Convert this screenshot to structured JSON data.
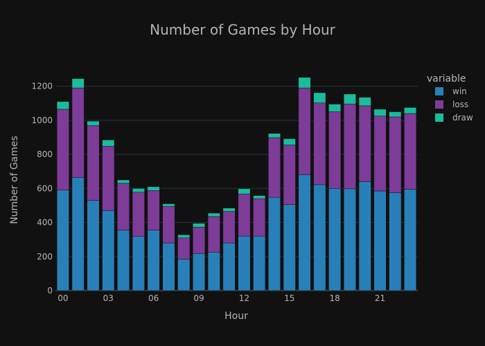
{
  "chart_data": {
    "type": "bar",
    "barmode": "stack",
    "title": "Number of Games by Hour",
    "xlabel": "Hour",
    "ylabel": "Number of Games",
    "legend_title": "variable",
    "legend_position": "top-right",
    "grid": true,
    "ylim": [
      0,
      1300
    ],
    "yticks": [
      0,
      200,
      400,
      600,
      800,
      1000,
      1200
    ],
    "xtick_labels": [
      {
        "hour": 0,
        "label": "00"
      },
      {
        "hour": 3,
        "label": "03"
      },
      {
        "hour": 6,
        "label": "06"
      },
      {
        "hour": 9,
        "label": "09"
      },
      {
        "hour": 12,
        "label": "12"
      },
      {
        "hour": 15,
        "label": "15"
      },
      {
        "hour": 18,
        "label": "18"
      },
      {
        "hour": 21,
        "label": "21"
      }
    ],
    "x": [
      0,
      1,
      2,
      3,
      4,
      5,
      6,
      7,
      8,
      9,
      10,
      11,
      12,
      13,
      14,
      15,
      16,
      17,
      18,
      19,
      20,
      21,
      22,
      23
    ],
    "series": [
      {
        "name": "win",
        "color": "#2980b9",
        "values": [
          590,
          665,
          530,
          470,
          355,
          318,
          355,
          280,
          185,
          218,
          225,
          280,
          320,
          320,
          548,
          505,
          680,
          622,
          600,
          598,
          640,
          585,
          575,
          595
        ]
      },
      {
        "name": "loss",
        "color": "#7d3c98",
        "values": [
          475,
          525,
          440,
          378,
          275,
          260,
          233,
          215,
          125,
          155,
          210,
          185,
          248,
          220,
          350,
          350,
          510,
          480,
          450,
          498,
          445,
          440,
          445,
          445
        ]
      },
      {
        "name": "draw",
        "color": "#1abc9c",
        "values": [
          45,
          55,
          25,
          37,
          20,
          22,
          22,
          15,
          18,
          22,
          20,
          20,
          30,
          18,
          25,
          37,
          62,
          60,
          45,
          58,
          50,
          40,
          30,
          35
        ]
      }
    ]
  }
}
